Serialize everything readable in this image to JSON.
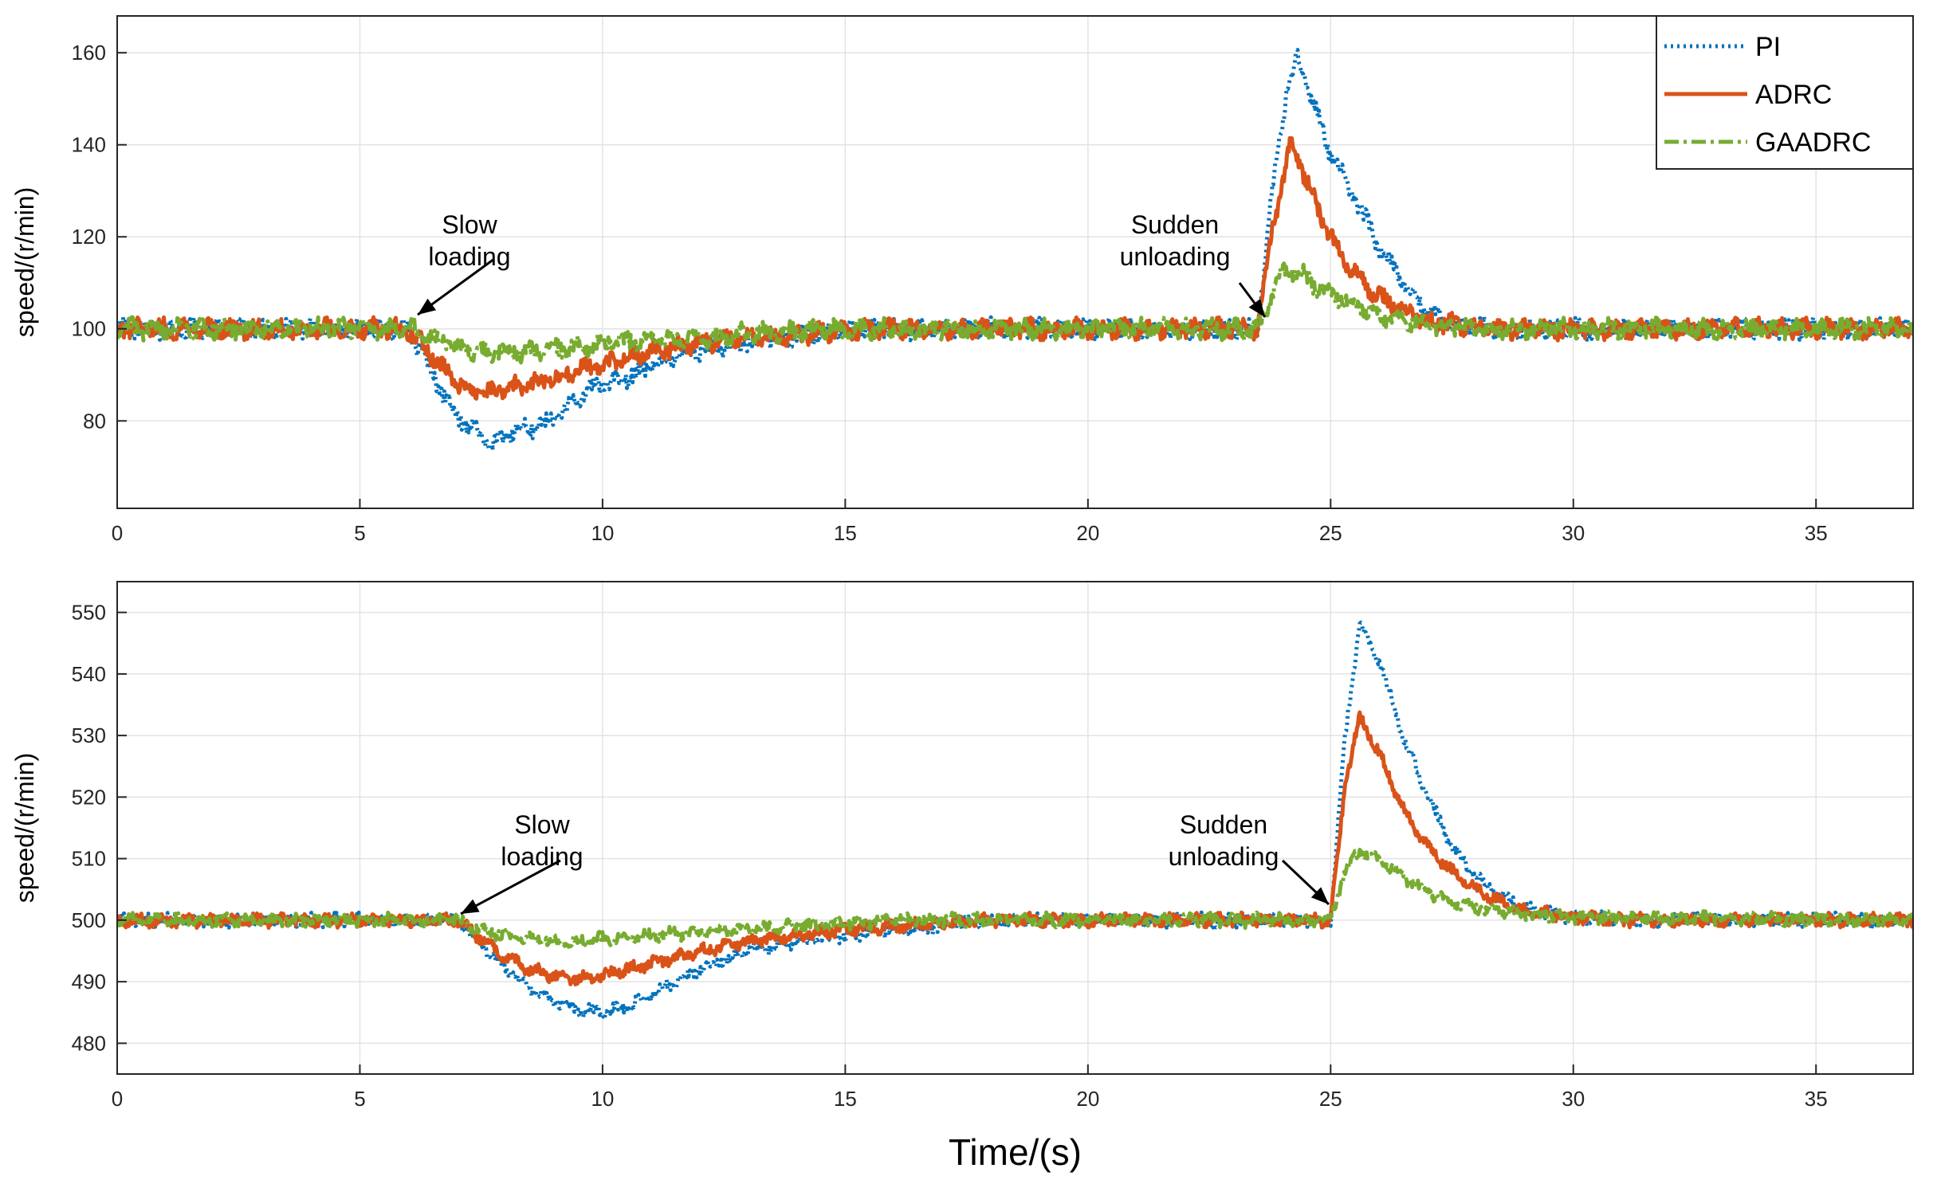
{
  "chart_data": [
    {
      "type": "line",
      "ylabel": "speed/(r/min)",
      "xlabel": "",
      "xlim": [
        0,
        37
      ],
      "ylim": [
        61,
        168
      ],
      "xticks": [
        0,
        5,
        10,
        15,
        20,
        25,
        30,
        35
      ],
      "yticks": [
        80,
        100,
        120,
        140,
        160
      ],
      "grid": true,
      "legend_position": "top-right",
      "series": [
        {
          "name": "PI",
          "color": "#0072BD",
          "style": "dotted",
          "points": [
            [
              0,
              100
            ],
            [
              6.0,
              100
            ],
            [
              6.5,
              90
            ],
            [
              7.0,
              81
            ],
            [
              7.5,
              77
            ],
            [
              7.8,
              75
            ],
            [
              8.2,
              78
            ],
            [
              8.8,
              79
            ],
            [
              9.2,
              82
            ],
            [
              9.6,
              86
            ],
            [
              10.0,
              88
            ],
            [
              10.6,
              90
            ],
            [
              11.2,
              93
            ],
            [
              11.8,
              95
            ],
            [
              12.5,
              96
            ],
            [
              13.5,
              98
            ],
            [
              14.5,
              99
            ],
            [
              15.5,
              100
            ],
            [
              23.5,
              100
            ],
            [
              23.8,
              130
            ],
            [
              24.1,
              152
            ],
            [
              24.3,
              159
            ],
            [
              24.6,
              150
            ],
            [
              25.0,
              138
            ],
            [
              25.5,
              128
            ],
            [
              26.0,
              118
            ],
            [
              26.5,
              110
            ],
            [
              27.0,
              104
            ],
            [
              27.5,
              101
            ],
            [
              28.5,
              100
            ],
            [
              37,
              100
            ]
          ]
        },
        {
          "name": "ADRC",
          "color": "#D95319",
          "style": "solid",
          "points": [
            [
              0,
              100
            ],
            [
              6.0,
              100
            ],
            [
              6.5,
              94
            ],
            [
              7.0,
              88
            ],
            [
              7.5,
              86
            ],
            [
              8.0,
              87
            ],
            [
              8.5,
              88
            ],
            [
              9.0,
              89
            ],
            [
              9.5,
              91
            ],
            [
              10.0,
              92
            ],
            [
              10.5,
              94
            ],
            [
              11.0,
              95
            ],
            [
              12.0,
              97
            ],
            [
              13.0,
              98
            ],
            [
              14.5,
              99
            ],
            [
              15.5,
              100
            ],
            [
              23.5,
              100
            ],
            [
              23.8,
              122
            ],
            [
              24.1,
              136
            ],
            [
              24.2,
              141
            ],
            [
              24.5,
              132
            ],
            [
              25.0,
              120
            ],
            [
              25.5,
              112
            ],
            [
              26.0,
              107
            ],
            [
              26.5,
              104
            ],
            [
              27.0,
              102
            ],
            [
              28.0,
              100
            ],
            [
              37,
              100
            ]
          ]
        },
        {
          "name": "GAADRC",
          "color": "#77AC30",
          "style": "dashdot",
          "points": [
            [
              0,
              100
            ],
            [
              6.0,
              100
            ],
            [
              6.5,
              98
            ],
            [
              7.0,
              96
            ],
            [
              7.5,
              95
            ],
            [
              8.0,
              95
            ],
            [
              8.5,
              95
            ],
            [
              9.0,
              95.5
            ],
            [
              9.5,
              96
            ],
            [
              10.0,
              97
            ],
            [
              11.0,
              97.5
            ],
            [
              12.0,
              98
            ],
            [
              13.0,
              99
            ],
            [
              14.0,
              99.5
            ],
            [
              15.0,
              100
            ],
            [
              23.5,
              100
            ],
            [
              23.8,
              108
            ],
            [
              24.0,
              112
            ],
            [
              24.3,
              113
            ],
            [
              24.6,
              110
            ],
            [
              25.0,
              108
            ],
            [
              25.5,
              105
            ],
            [
              26.0,
              103
            ],
            [
              27.0,
              101
            ],
            [
              28.0,
              100
            ],
            [
              37,
              100
            ]
          ]
        }
      ],
      "annotations": [
        {
          "text": [
            "Slow",
            "loading"
          ],
          "x": 6.2,
          "y": 101
        },
        {
          "text": [
            "Sudden",
            "unloading"
          ],
          "x": 23.5,
          "y": 102
        }
      ]
    },
    {
      "type": "line",
      "ylabel": "speed/(r/min)",
      "xlabel": "Time/(s)",
      "xlim": [
        0,
        37
      ],
      "ylim": [
        475,
        555
      ],
      "xticks": [
        0,
        5,
        10,
        15,
        20,
        25,
        30,
        35
      ],
      "yticks": [
        480,
        490,
        500,
        510,
        520,
        530,
        540,
        550
      ],
      "grid": true,
      "series": [
        {
          "name": "PI",
          "color": "#0072BD",
          "style": "dotted",
          "points": [
            [
              0,
              500
            ],
            [
              7.0,
              500
            ],
            [
              7.5,
              496
            ],
            [
              8.0,
              492
            ],
            [
              8.5,
              489
            ],
            [
              9.0,
              487
            ],
            [
              9.5,
              485.5
            ],
            [
              10.0,
              485
            ],
            [
              10.5,
              486
            ],
            [
              11.0,
              488
            ],
            [
              11.5,
              490
            ],
            [
              12.0,
              492
            ],
            [
              12.5,
              493.5
            ],
            [
              13.0,
              495
            ],
            [
              14.0,
              496.5
            ],
            [
              15.0,
              497.5
            ],
            [
              16.0,
              498.5
            ],
            [
              17.0,
              499
            ],
            [
              18.0,
              500
            ],
            [
              25.0,
              500
            ],
            [
              25.3,
              530
            ],
            [
              25.6,
              548
            ],
            [
              26.0,
              542
            ],
            [
              26.5,
              530
            ],
            [
              27.0,
              520
            ],
            [
              27.5,
              512
            ],
            [
              28.0,
              507
            ],
            [
              28.5,
              504
            ],
            [
              29.0,
              502
            ],
            [
              30.0,
              500.5
            ],
            [
              31.0,
              500
            ],
            [
              37,
              500
            ]
          ]
        },
        {
          "name": "ADRC",
          "color": "#D95319",
          "style": "solid",
          "points": [
            [
              0,
              500
            ],
            [
              7.0,
              500
            ],
            [
              7.5,
              497
            ],
            [
              8.0,
              494
            ],
            [
              8.5,
              492
            ],
            [
              9.0,
              491
            ],
            [
              9.5,
              490.5
            ],
            [
              10.0,
              491
            ],
            [
              10.5,
              492
            ],
            [
              11.0,
              493
            ],
            [
              11.5,
              494
            ],
            [
              12.0,
              495
            ],
            [
              13.0,
              496.5
            ],
            [
              14.0,
              497.5
            ],
            [
              15.0,
              498.5
            ],
            [
              16.0,
              499
            ],
            [
              17.0,
              499.5
            ],
            [
              18.0,
              500
            ],
            [
              25.0,
              500
            ],
            [
              25.3,
              522
            ],
            [
              25.6,
              533
            ],
            [
              26.0,
              527
            ],
            [
              26.5,
              518
            ],
            [
              27.0,
              512
            ],
            [
              27.5,
              508
            ],
            [
              28.0,
              505
            ],
            [
              28.5,
              503
            ],
            [
              29.0,
              501.5
            ],
            [
              30.0,
              500.5
            ],
            [
              31.0,
              500
            ],
            [
              37,
              500
            ]
          ]
        },
        {
          "name": "GAADRC",
          "color": "#77AC30",
          "style": "dashdot",
          "points": [
            [
              0,
              500
            ],
            [
              7.0,
              500
            ],
            [
              7.5,
              498.5
            ],
            [
              8.0,
              497.5
            ],
            [
              8.5,
              497
            ],
            [
              9.0,
              496.5
            ],
            [
              9.5,
              496.5
            ],
            [
              10.0,
              497
            ],
            [
              11.0,
              497.5
            ],
            [
              12.0,
              498
            ],
            [
              13.0,
              498.5
            ],
            [
              14.0,
              499
            ],
            [
              15.0,
              499.5
            ],
            [
              16.0,
              500
            ],
            [
              25.0,
              500
            ],
            [
              25.3,
              508
            ],
            [
              25.6,
              511.5
            ],
            [
              26.0,
              510
            ],
            [
              26.5,
              507
            ],
            [
              27.0,
              504.5
            ],
            [
              27.5,
              503
            ],
            [
              28.0,
              502
            ],
            [
              29.0,
              501
            ],
            [
              30.0,
              500.5
            ],
            [
              37,
              500
            ]
          ]
        }
      ],
      "annotations": [
        {
          "text": [
            "Slow",
            "loading"
          ],
          "x": 7.1,
          "y": 500.5
        },
        {
          "text": [
            "Sudden",
            "unloading"
          ],
          "x": 25.0,
          "y": 502
        }
      ]
    }
  ]
}
